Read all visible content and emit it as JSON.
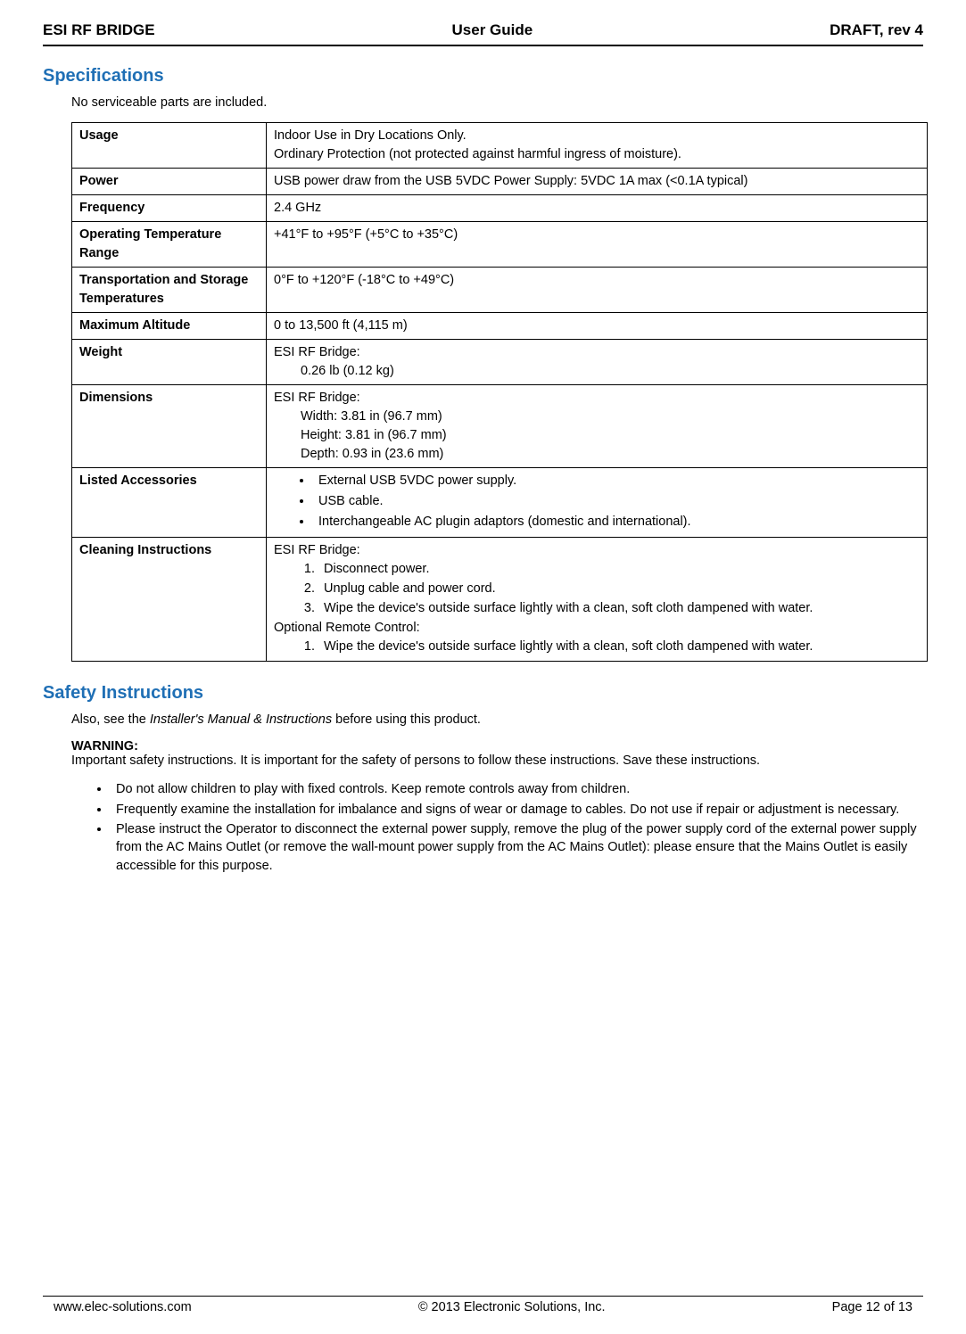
{
  "header": {
    "left": "ESI RF BRIDGE",
    "center": "User Guide",
    "right": "DRAFT, rev 4"
  },
  "specifications": {
    "title": "Specifications",
    "lead": "No serviceable parts are included.",
    "rows": {
      "usage": {
        "label": "Usage",
        "line1": "Indoor Use in Dry Locations Only.",
        "line2": "Ordinary Protection (not protected against harmful ingress of moisture)."
      },
      "power": {
        "label": "Power",
        "value": "USB power draw from the USB 5VDC Power Supply: 5VDC 1A max (<0.1A typical)"
      },
      "frequency": {
        "label": "Frequency",
        "value": "2.4 GHz"
      },
      "opTemp": {
        "label": "Operating Temperature Range",
        "value": "+41°F to +95°F (+5°C to +35°C)"
      },
      "storageTemp": {
        "label": "Transportation and Storage Temperatures",
        "value": "0°F to +120°F (-18°C to +49°C)"
      },
      "altitude": {
        "label": "Maximum Altitude",
        "value": "0 to 13,500 ft (4,115 m)"
      },
      "weight": {
        "label": "Weight",
        "heading": "ESI RF Bridge:",
        "line1": "0.26 lb (0.12 kg)"
      },
      "dimensions": {
        "label": "Dimensions",
        "heading": "ESI RF Bridge:",
        "line1": "Width: 3.81 in (96.7 mm)",
        "line2": "Height: 3.81 in (96.7 mm)",
        "line3": "Depth: 0.93 in (23.6 mm)"
      },
      "accessories": {
        "label": "Listed Accessories",
        "items": [
          "External USB 5VDC power supply.",
          "USB cable.",
          "Interchangeable AC plugin adaptors (domestic and international)."
        ]
      },
      "cleaning": {
        "label": "Cleaning Instructions",
        "heading1": "ESI RF Bridge:",
        "steps1": [
          "Disconnect power.",
          "Unplug cable and power cord.",
          "Wipe the device's outside surface lightly with a clean, soft cloth dampened with water."
        ],
        "heading2": "Optional Remote Control:",
        "steps2": [
          "Wipe the device's outside surface lightly with a clean, soft cloth dampened with water."
        ]
      }
    }
  },
  "safety": {
    "title": "Safety Instructions",
    "lead_prefix": "Also, see the ",
    "lead_italic": "Installer's Manual & Instructions",
    "lead_suffix": " before using this product.",
    "warning_label": "WARNING:",
    "warning_text": "Important safety instructions. It is important for the safety of persons to follow these instructions. Save these instructions.",
    "bullets": [
      "Do not allow children to play with fixed controls. Keep remote controls away from children.",
      "Frequently examine the installation for imbalance and signs of wear or damage to cables. Do not use if repair or adjustment is necessary.",
      "Please instruct the Operator to disconnect the external power supply, remove the plug of the power supply cord of the external power supply from the AC Mains Outlet (or remove the wall-mount power supply from the AC Mains Outlet): please ensure that the Mains Outlet is easily accessible for this purpose."
    ]
  },
  "footer": {
    "left": "www.elec-solutions.com",
    "center": "© 2013 Electronic Solutions, Inc.",
    "right": "Page 12 of 13"
  }
}
